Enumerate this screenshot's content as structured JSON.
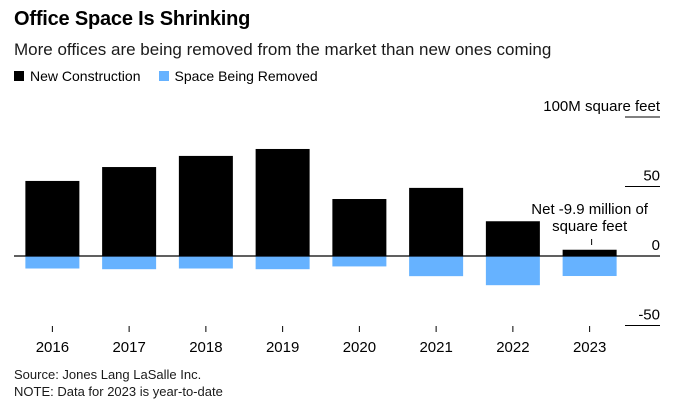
{
  "header": {
    "title": "Office Space Is Shrinking",
    "subtitle": "More offices are being removed from the market than new ones coming"
  },
  "footer": {
    "source": "Source: Jones Lang LaSalle Inc.",
    "note": "NOTE: Data for 2023 is year-to-date"
  },
  "colors": {
    "new_construction": "#000000",
    "space_removed": "#66b2ff",
    "zero_line": "#000000",
    "grid": "#bdbdbd"
  },
  "chart_data": {
    "type": "bar",
    "stacking": "diverging",
    "title": "Office Space Is Shrinking",
    "subtitle": "More offices are being removed from the market than new ones coming",
    "unit_label": "100M square feet",
    "categories": [
      "2016",
      "2017",
      "2018",
      "2019",
      "2020",
      "2021",
      "2022",
      "2023"
    ],
    "series": [
      {
        "name": "New Construction",
        "color": "#000000",
        "values": [
          54,
          64,
          72,
          77,
          41,
          49,
          25,
          4.5
        ]
      },
      {
        "name": "Space Being Removed",
        "color": "#66b2ff",
        "values": [
          -9,
          -9.5,
          -9,
          -9.5,
          -7.5,
          -14.5,
          -21,
          -14.4
        ]
      }
    ],
    "ylim": [
      -50,
      100
    ],
    "yticks": [
      {
        "value": 100,
        "label": "100M square feet"
      },
      {
        "value": 50,
        "label": "50"
      },
      {
        "value": 0,
        "label": "0"
      },
      {
        "value": -50,
        "label": "-50"
      }
    ],
    "annotation": {
      "category": "2023",
      "text_lines": [
        "Net -9.9 million of",
        "square feet"
      ]
    },
    "legend_position": "top-left",
    "grid": false
  }
}
